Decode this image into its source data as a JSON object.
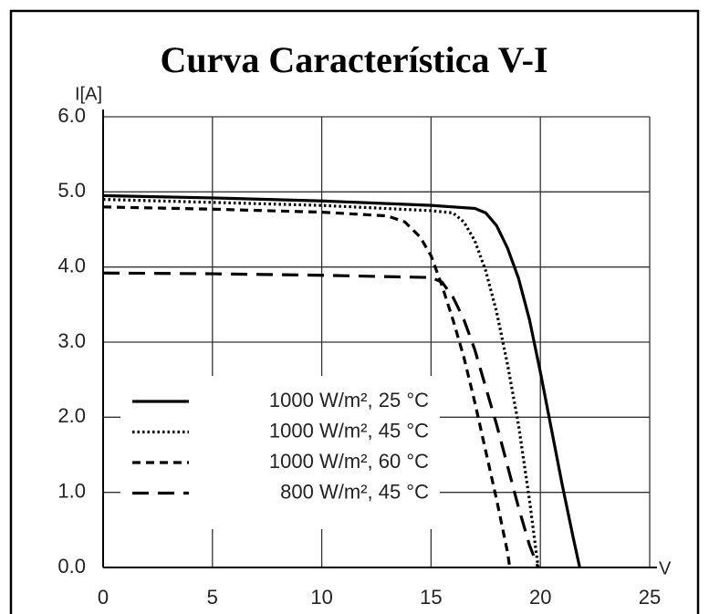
{
  "chart_data": {
    "type": "line",
    "title": "Curva Característica V-I",
    "y_label": "I[A]",
    "x_label": "V",
    "xlim": [
      0,
      25
    ],
    "xticks": [
      0,
      5,
      10,
      15,
      20,
      25
    ],
    "ylim": [
      0,
      6
    ],
    "yticks": [
      {
        "value": 0,
        "label": "0.0"
      },
      {
        "value": 1,
        "label": "1.0"
      },
      {
        "value": 2,
        "label": "2.0"
      },
      {
        "value": 3,
        "label": "3.0"
      },
      {
        "value": 4,
        "label": "4.0"
      },
      {
        "value": 5,
        "label": "5.0"
      },
      {
        "value": 6,
        "label": "6.0"
      }
    ],
    "grid": true,
    "legend": "lower left",
    "series": [
      {
        "name": "1000 W/m², 25 °C",
        "color": "#000000",
        "dash": "solid",
        "x": [
          0,
          5,
          10,
          15,
          17,
          17.5,
          18,
          18.5,
          19,
          19.5,
          20,
          20.5,
          21,
          21.5,
          21.8
        ],
        "values": [
          4.95,
          4.92,
          4.88,
          4.82,
          4.78,
          4.72,
          4.55,
          4.25,
          3.85,
          3.3,
          2.6,
          1.85,
          1.1,
          0.4,
          0
        ]
      },
      {
        "name": "1000 W/m², 45 °C",
        "color": "#000000",
        "dash": "dotted",
        "x": [
          0,
          5,
          10,
          15,
          16,
          16.5,
          17,
          17.5,
          18,
          18.5,
          19,
          19.5,
          19.9
        ],
        "values": [
          4.9,
          4.86,
          4.82,
          4.75,
          4.72,
          4.6,
          4.35,
          3.95,
          3.4,
          2.7,
          1.9,
          0.9,
          0
        ]
      },
      {
        "name": "1000 W/m², 60 °C",
        "color": "#000000",
        "dash": "dashed",
        "x": [
          0,
          5,
          10,
          13,
          13.8,
          14.5,
          15,
          15.5,
          16,
          16.5,
          17,
          17.5,
          18,
          18.5,
          18.6
        ],
        "values": [
          4.8,
          4.77,
          4.73,
          4.68,
          4.6,
          4.4,
          4.15,
          3.75,
          3.3,
          2.8,
          2.2,
          1.55,
          0.9,
          0.2,
          0
        ]
      },
      {
        "name": "800 W/m², 45 °C",
        "color": "#000000",
        "dash": "longdash",
        "x": [
          0,
          5,
          10,
          15,
          15.5,
          16,
          16.5,
          17,
          17.5,
          18,
          18.5,
          19,
          19.5,
          19.9
        ],
        "values": [
          3.92,
          3.91,
          3.89,
          3.86,
          3.8,
          3.6,
          3.3,
          2.9,
          2.4,
          1.9,
          1.35,
          0.8,
          0.3,
          0
        ]
      }
    ]
  }
}
